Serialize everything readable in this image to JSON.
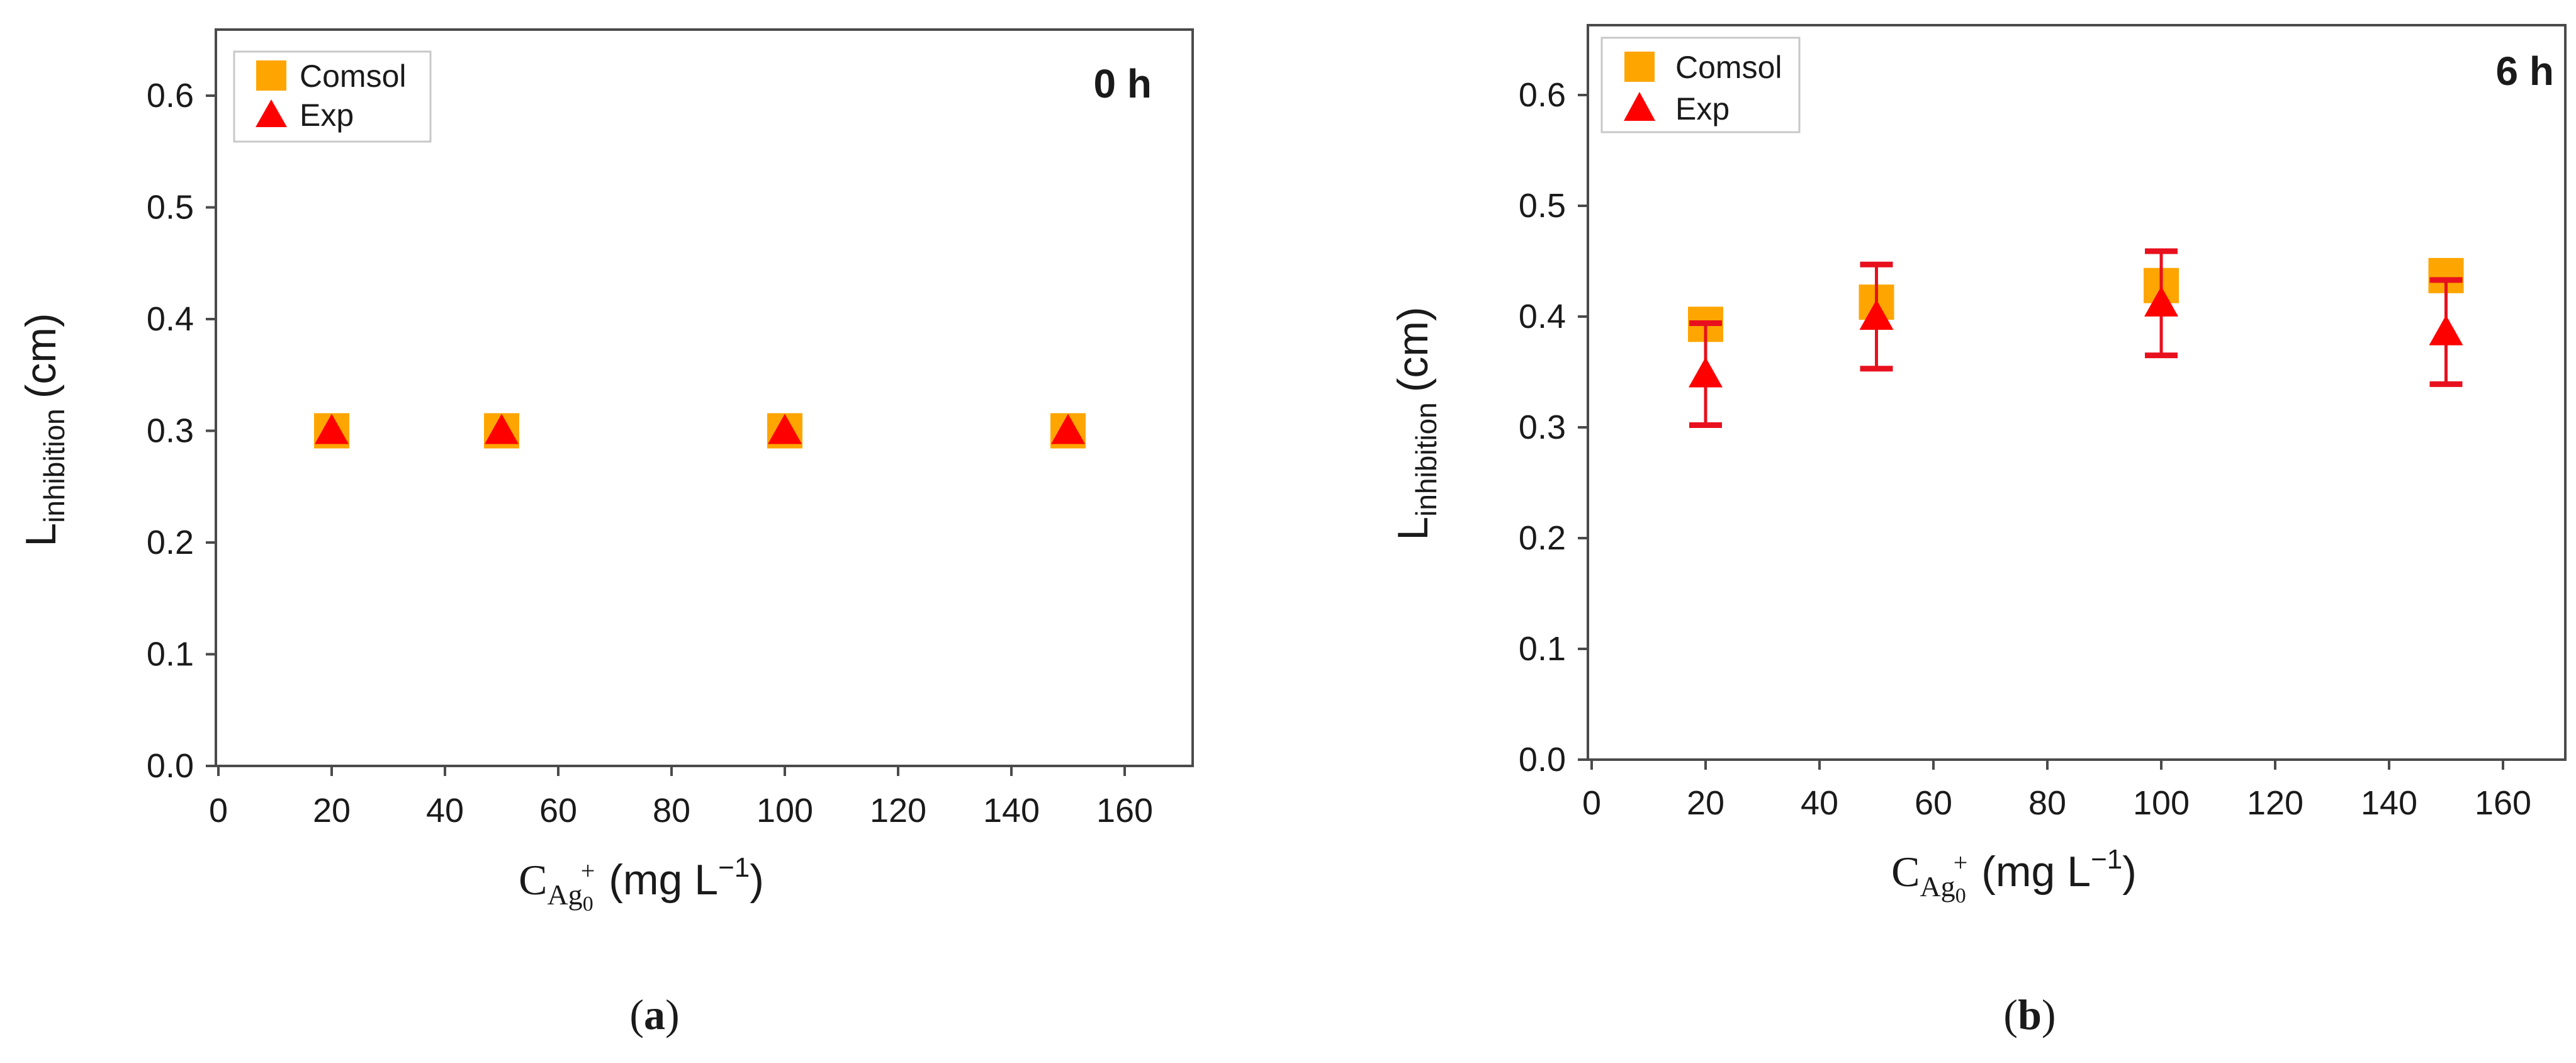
{
  "colors": {
    "comsol": "#FFA500",
    "exp": "#FF0000",
    "errorbar": "#E8101E",
    "axis": "#4a4a4a"
  },
  "chart_data": [
    {
      "type": "scatter",
      "panel_label": "0 h",
      "caption": {
        "open": "(",
        "letter": "a",
        "close": ")"
      },
      "xlabel": {
        "main": "C",
        "sub": "Ag",
        "subsub": "0",
        "sup": "+",
        "unit": "(mg L",
        "unit_sup": "−1",
        "unit_close": ")"
      },
      "ylabel": {
        "main": "L",
        "sub": "inhibition",
        "unit": "(cm)"
      },
      "xlim": [
        0,
        170
      ],
      "ylim": [
        0,
        0.65
      ],
      "xticks": [
        0,
        20,
        40,
        60,
        80,
        100,
        120,
        140,
        160
      ],
      "yticks": [
        "0.0",
        "0.1",
        "0.2",
        "0.3",
        "0.4",
        "0.5",
        "0.6"
      ],
      "legend": {
        "position": "top-left",
        "entries": [
          "Comsol",
          "Exp"
        ]
      },
      "series": [
        {
          "name": "Comsol",
          "marker": "square",
          "x": [
            20,
            50,
            100,
            150
          ],
          "y": [
            0.3,
            0.3,
            0.3,
            0.3
          ]
        },
        {
          "name": "Exp",
          "marker": "triangle",
          "x": [
            20,
            50,
            100,
            150
          ],
          "y": [
            0.3,
            0.3,
            0.3,
            0.3
          ],
          "error": [
            0,
            0,
            0,
            0
          ]
        }
      ]
    },
    {
      "type": "scatter",
      "panel_label": "6 h",
      "caption": {
        "open": "(",
        "letter": "b",
        "close": ")"
      },
      "xlabel": {
        "main": "C",
        "sub": "Ag",
        "subsub": "0",
        "sup": "+",
        "unit": "(mg L",
        "unit_sup": "−1",
        "unit_close": ")"
      },
      "ylabel": {
        "main": "L",
        "sub": "inhibition",
        "unit": "(cm)"
      },
      "xlim": [
        0,
        170
      ],
      "ylim": [
        0,
        0.65
      ],
      "xticks": [
        0,
        20,
        40,
        60,
        80,
        100,
        120,
        140,
        160
      ],
      "yticks": [
        "0.0",
        "0.1",
        "0.2",
        "0.3",
        "0.4",
        "0.5",
        "0.6"
      ],
      "legend": {
        "position": "top-left",
        "entries": [
          "Comsol",
          "Exp"
        ]
      },
      "series": [
        {
          "name": "Comsol",
          "marker": "square",
          "x": [
            20,
            50,
            100,
            150
          ],
          "y": [
            0.393,
            0.413,
            0.428,
            0.437
          ]
        },
        {
          "name": "Exp",
          "marker": "triangle",
          "x": [
            20,
            50,
            100,
            150
          ],
          "y": [
            0.348,
            0.4,
            0.412,
            0.386
          ],
          "error": [
            0.046,
            0.047,
            0.047,
            0.047
          ]
        }
      ]
    }
  ]
}
